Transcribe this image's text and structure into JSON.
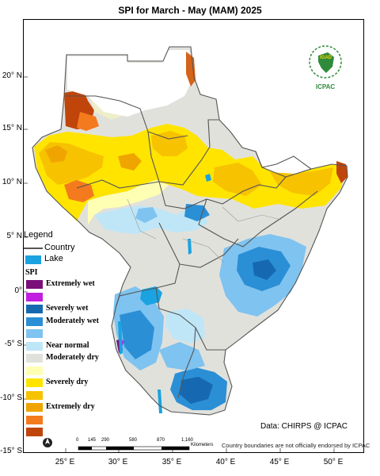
{
  "title": "SPI  for  March - May (MAM) 2025",
  "latitude_labels": [
    "20° N",
    "15° N",
    "10° N",
    "5° N",
    "0°",
    "-5° S",
    "-10° S",
    "-15° S"
  ],
  "longitude_labels": [
    "25° E",
    "30° E",
    "35° E",
    "40° E",
    "45° E",
    "50° E"
  ],
  "legend": {
    "heading": "Legend",
    "country_label": "Country",
    "lake_label": "Lake",
    "spi_heading": "SPI",
    "classes": [
      {
        "label": "Extremely wet",
        "color": "#7a0f7a"
      },
      {
        "label": "",
        "color": "#c21ee0"
      },
      {
        "label": "Severely wet",
        "color": "#1669b0"
      },
      {
        "label": "Moderately wet",
        "color": "#2b8fd6"
      },
      {
        "label": "",
        "color": "#7fc3f0"
      },
      {
        "label": "Near normal",
        "color": "#bfe6f7"
      },
      {
        "label": "Moderately dry",
        "color": "#e1e1dc"
      },
      {
        "label": "",
        "color": "#ffffb4"
      },
      {
        "label": "Severely dry",
        "color": "#ffe400"
      },
      {
        "label": "",
        "color": "#f7c200"
      },
      {
        "label": "Extremely dry",
        "color": "#f0a400"
      },
      {
        "label": "",
        "color": "#f47a1e"
      },
      {
        "label": "",
        "color": "#c0450a"
      }
    ]
  },
  "lake_color": "#1aa3e0",
  "scale_bar": {
    "ticks": [
      "0",
      "145",
      "290",
      "580",
      "870",
      "1,160"
    ],
    "unit": "Kilometers"
  },
  "logo_text": {
    "top": "IGAD",
    "bottom": "ICPAC"
  },
  "credit": "Data: CHIRPS @ ICPAC",
  "disclaimer": "Country boundaries are not officially endorsed by ICPAC"
}
